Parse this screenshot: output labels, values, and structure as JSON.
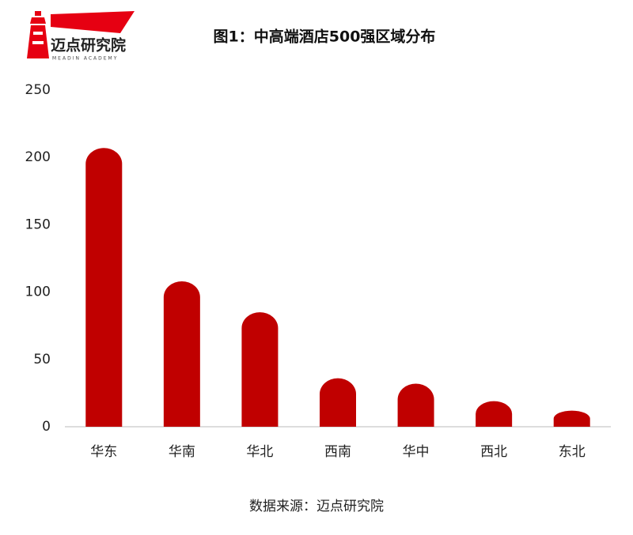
{
  "logo": {
    "name": "迈点研究院",
    "subtitle": "MEADIN ACADEMY"
  },
  "chart_data": {
    "type": "bar",
    "title": "图1：中高端酒店500强区域分布",
    "categories": [
      "华东",
      "华南",
      "华北",
      "西南",
      "华中",
      "西北",
      "东北"
    ],
    "values": [
      207,
      108,
      85,
      36,
      32,
      19,
      12
    ],
    "color": "#c00000",
    "ylim": [
      0,
      250
    ],
    "yticks": [
      0,
      50,
      100,
      150,
      200,
      250
    ],
    "grid": false,
    "source": "数据来源：迈点研究院"
  }
}
